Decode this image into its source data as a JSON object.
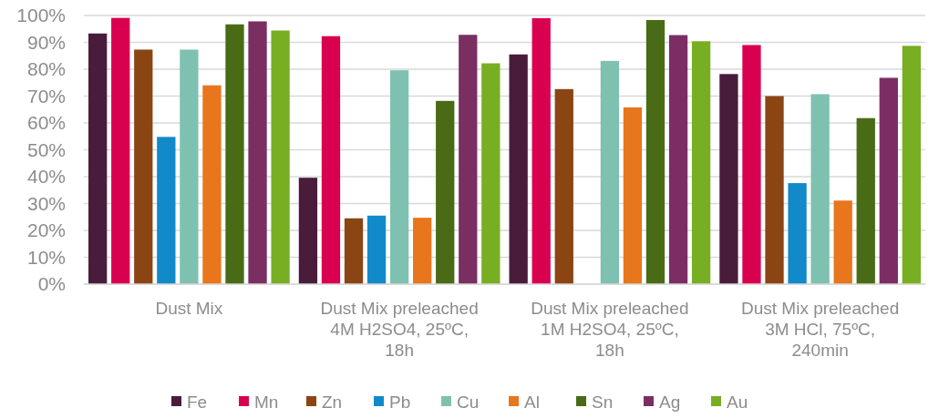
{
  "chart_data": {
    "type": "bar",
    "categories": [
      "Dust Mix",
      "Dust Mix preleached\n4M H2SO4, 25ºC,\n18h",
      "Dust Mix preleached\n1M H2SO4, 25ºC,\n18h",
      "Dust Mix preleached\n3M HCl, 75ºC,\n240min"
    ],
    "series": [
      {
        "name": "Fe",
        "color": "#4a1c3b",
        "values": [
          93.3,
          39.6,
          85.5,
          78.2
        ]
      },
      {
        "name": "Mn",
        "color": "#d9004f",
        "values": [
          99.1,
          92.3,
          99.0,
          89.0
        ]
      },
      {
        "name": "Zn",
        "color": "#8b4513",
        "values": [
          87.3,
          24.5,
          72.6,
          70.0
        ]
      },
      {
        "name": "Pb",
        "color": "#1289c9",
        "values": [
          54.8,
          25.5,
          null,
          37.6
        ]
      },
      {
        "name": "Cu",
        "color": "#7fc1b0",
        "values": [
          87.3,
          79.6,
          83.1,
          70.7
        ]
      },
      {
        "name": "Al",
        "color": "#e8761c",
        "values": [
          74.0,
          24.7,
          65.8,
          31.1
        ]
      },
      {
        "name": "Sn",
        "color": "#496b16",
        "values": [
          96.7,
          68.2,
          98.3,
          61.8
        ]
      },
      {
        "name": "Ag",
        "color": "#7a2e62",
        "values": [
          97.8,
          92.8,
          92.7,
          76.8
        ]
      },
      {
        "name": "Au",
        "color": "#78ae21",
        "values": [
          94.4,
          82.2,
          90.4,
          88.7
        ]
      }
    ],
    "ylim": [
      0,
      100
    ],
    "yticks": [
      {
        "value": 0,
        "label": "0%"
      },
      {
        "value": 10,
        "label": "10%"
      },
      {
        "value": 20,
        "label": "20%"
      },
      {
        "value": 30,
        "label": "30%"
      },
      {
        "value": 40,
        "label": "40%"
      },
      {
        "value": 50,
        "label": "50%"
      },
      {
        "value": 60,
        "label": "60%"
      },
      {
        "value": 70,
        "label": "70%"
      },
      {
        "value": 80,
        "label": "80%"
      },
      {
        "value": 90,
        "label": "90%"
      },
      {
        "value": 100,
        "label": "100%"
      }
    ],
    "grid": "y",
    "legend": "bottom"
  }
}
